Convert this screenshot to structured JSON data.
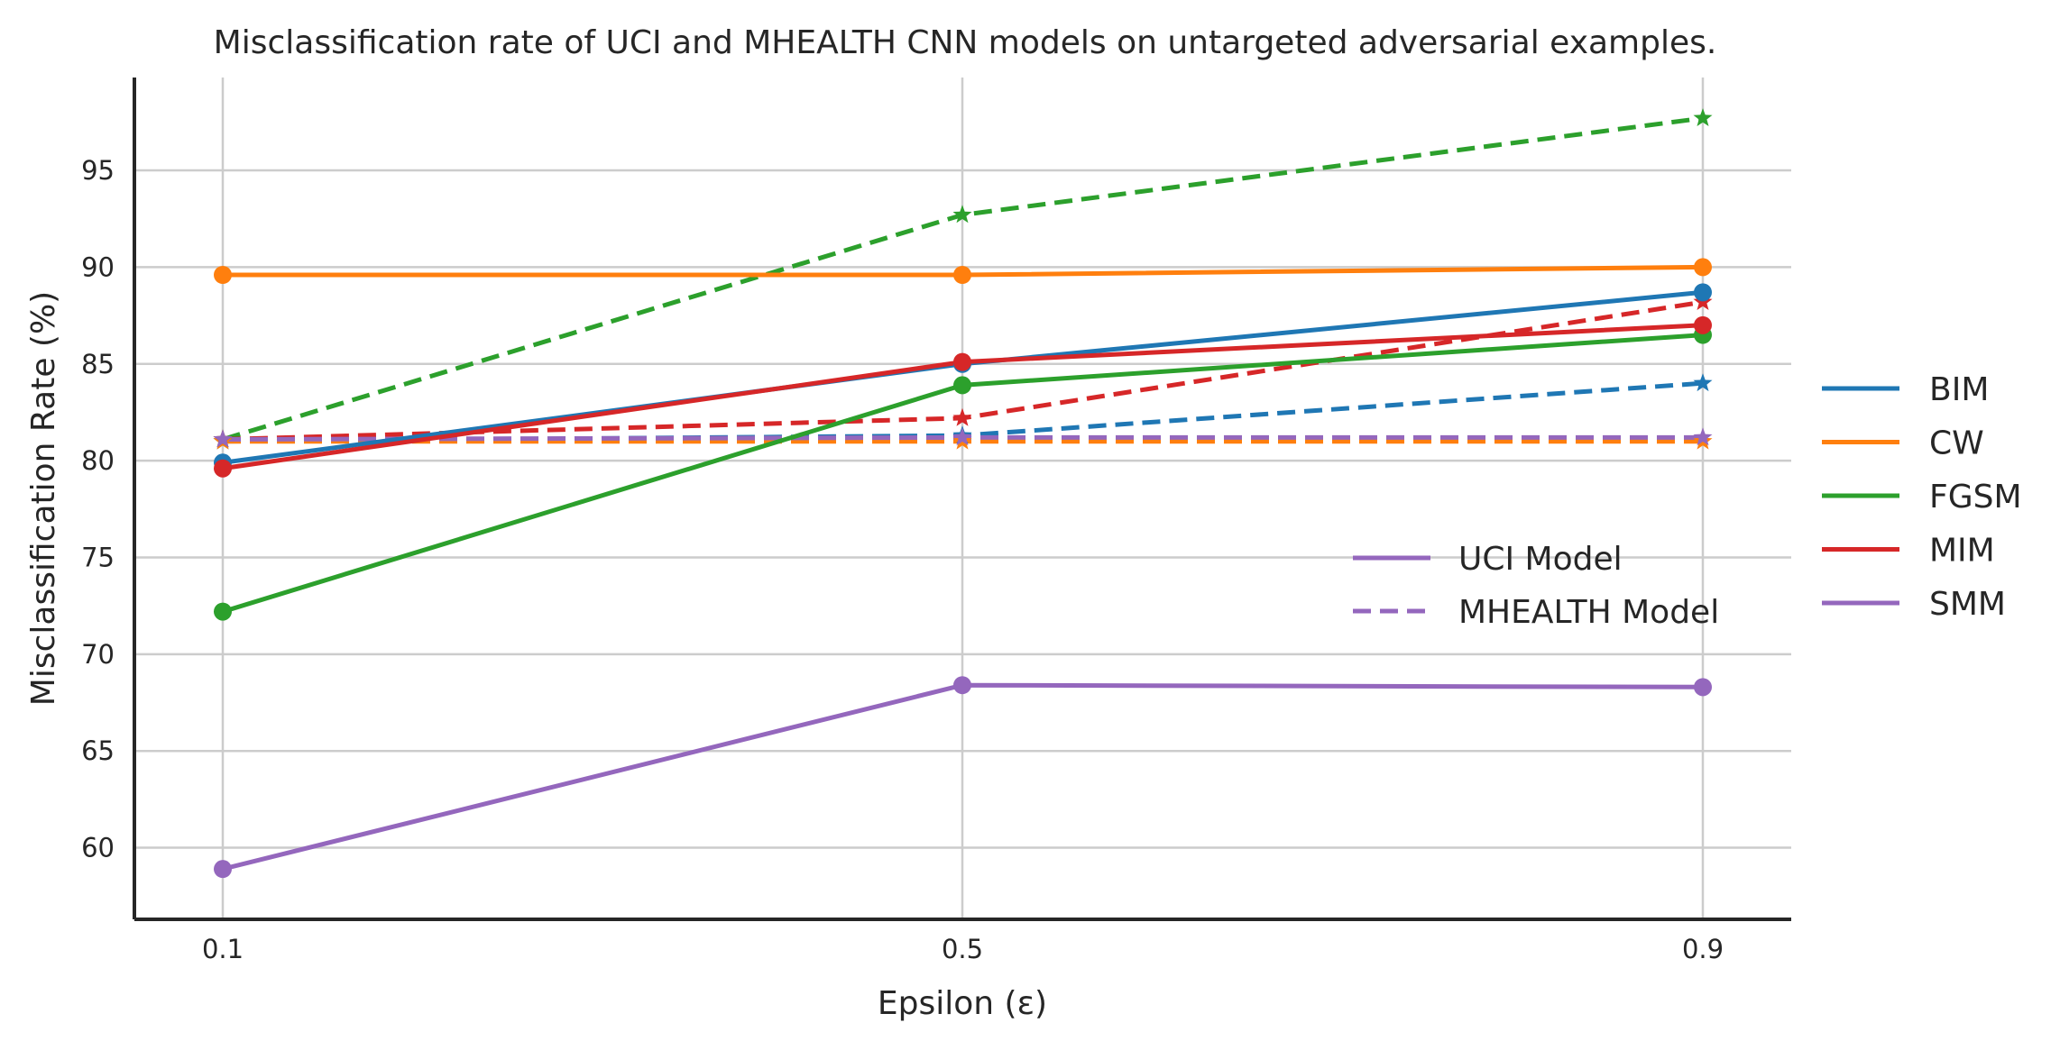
{
  "chart_data": {
    "type": "line",
    "title": "Misclassification rate of UCI and MHEALTH CNN models on untargeted adversarial examples.",
    "xlabel": "Epsilon (ε)",
    "ylabel": "Misclassification Rate (%)",
    "x": [
      0.1,
      0.5,
      0.9
    ],
    "x_tick_labels": [
      "0.1",
      "0.5",
      "0.9"
    ],
    "y_ticks": [
      60,
      65,
      70,
      75,
      80,
      85,
      90,
      95
    ],
    "ylim": [
      56.3,
      99.8
    ],
    "grid": true,
    "legend_attacks": {
      "placement": "right",
      "entries": [
        {
          "label": "BIM",
          "color": "#1f77b4"
        },
        {
          "label": "CW",
          "color": "#ff7f0e"
        },
        {
          "label": "FGSM",
          "color": "#2ca02c"
        },
        {
          "label": "MIM",
          "color": "#d62728"
        },
        {
          "label": "SMM",
          "color": "#9467bd"
        }
      ]
    },
    "legend_models": {
      "placement": "center-right",
      "entries": [
        {
          "label": "UCI Model",
          "style": "solid",
          "marker": "circle"
        },
        {
          "label": "MHEALTH Model",
          "style": "dashed",
          "marker": "star"
        }
      ]
    },
    "series": [
      {
        "attack": "BIM",
        "model": "UCI Model",
        "color": "#1f77b4",
        "style": "solid",
        "marker": "circle",
        "values": [
          79.9,
          85.0,
          88.7
        ]
      },
      {
        "attack": "CW",
        "model": "UCI Model",
        "color": "#ff7f0e",
        "style": "solid",
        "marker": "circle",
        "values": [
          89.6,
          89.6,
          90.0
        ]
      },
      {
        "attack": "FGSM",
        "model": "UCI Model",
        "color": "#2ca02c",
        "style": "solid",
        "marker": "circle",
        "values": [
          72.2,
          83.9,
          86.5
        ]
      },
      {
        "attack": "MIM",
        "model": "UCI Model",
        "color": "#d62728",
        "style": "solid",
        "marker": "circle",
        "values": [
          79.6,
          85.1,
          87.0
        ]
      },
      {
        "attack": "SMM",
        "model": "UCI Model",
        "color": "#9467bd",
        "style": "solid",
        "marker": "circle",
        "values": [
          58.9,
          68.4,
          68.3
        ]
      },
      {
        "attack": "BIM",
        "model": "MHEALTH Model",
        "color": "#1f77b4",
        "style": "dashed",
        "marker": "star",
        "values": [
          81.0,
          81.3,
          84.0
        ]
      },
      {
        "attack": "CW",
        "model": "MHEALTH Model",
        "color": "#ff7f0e",
        "style": "dashed",
        "marker": "star",
        "values": [
          81.0,
          81.0,
          81.0
        ]
      },
      {
        "attack": "FGSM",
        "model": "MHEALTH Model",
        "color": "#2ca02c",
        "style": "dashed",
        "marker": "star",
        "values": [
          81.1,
          92.7,
          97.7
        ]
      },
      {
        "attack": "MIM",
        "model": "MHEALTH Model",
        "color": "#d62728",
        "style": "dashed",
        "marker": "star",
        "values": [
          81.1,
          82.2,
          88.2
        ]
      },
      {
        "attack": "SMM",
        "model": "MHEALTH Model",
        "color": "#9467bd",
        "style": "dashed",
        "marker": "star",
        "values": [
          81.1,
          81.2,
          81.2
        ]
      }
    ]
  }
}
